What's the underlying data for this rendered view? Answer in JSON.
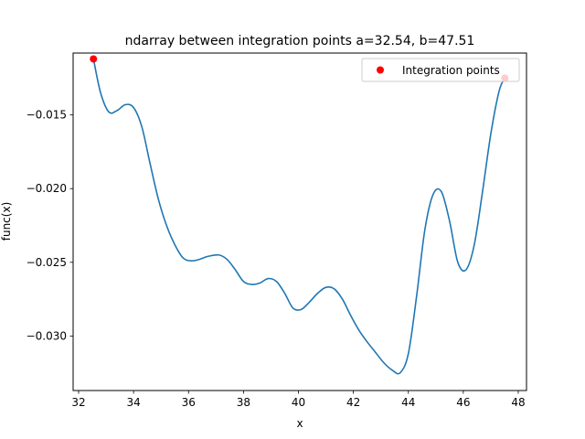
{
  "chart_data": {
    "type": "line",
    "title": "ndarray between integration points a=32.54, b=47.51",
    "xlabel": "x",
    "ylabel": "func(x)",
    "xlim": [
      31.8,
      48.3
    ],
    "ylim": [
      -0.0337,
      -0.0108
    ],
    "xticks": [
      32,
      34,
      36,
      38,
      40,
      42,
      44,
      46,
      48
    ],
    "yticks": [
      -0.015,
      -0.02,
      -0.025,
      -0.03
    ],
    "xtick_labels": [
      "32",
      "34",
      "36",
      "38",
      "40",
      "42",
      "44",
      "46",
      "48"
    ],
    "ytick_labels": [
      "−0.015",
      "−0.020",
      "−0.025",
      "−0.030"
    ],
    "grid": false,
    "legend_position": "top-right",
    "series": [
      {
        "kind": "line",
        "color": "#1f77b4",
        "x": [
          32.54,
          32.8,
          33.1,
          33.4,
          33.7,
          34.0,
          34.3,
          34.6,
          34.9,
          35.2,
          35.5,
          35.8,
          36.1,
          36.4,
          36.7,
          37.1,
          37.4,
          37.7,
          38.0,
          38.3,
          38.6,
          38.9,
          39.2,
          39.5,
          39.8,
          40.1,
          40.4,
          40.7,
          41.0,
          41.3,
          41.6,
          41.9,
          42.2,
          42.5,
          42.8,
          43.1,
          43.4,
          43.7,
          44.0,
          44.3,
          44.6,
          44.9,
          45.2,
          45.5,
          45.8,
          46.1,
          46.4,
          46.7,
          47.0,
          47.3,
          47.51
        ],
        "y": [
          -0.0112,
          -0.0135,
          -0.0148,
          -0.0147,
          -0.0143,
          -0.0145,
          -0.0158,
          -0.0183,
          -0.0207,
          -0.0225,
          -0.0238,
          -0.0247,
          -0.0249,
          -0.0248,
          -0.0246,
          -0.0245,
          -0.0248,
          -0.0255,
          -0.0263,
          -0.0265,
          -0.0264,
          -0.0261,
          -0.0263,
          -0.0271,
          -0.0281,
          -0.0282,
          -0.0277,
          -0.0271,
          -0.0267,
          -0.0268,
          -0.0275,
          -0.0286,
          -0.0296,
          -0.0304,
          -0.0311,
          -0.0318,
          -0.0323,
          -0.0325,
          -0.0312,
          -0.0273,
          -0.0228,
          -0.0204,
          -0.0202,
          -0.0222,
          -0.025,
          -0.0255,
          -0.0238,
          -0.0202,
          -0.0163,
          -0.0134,
          -0.0125
        ]
      },
      {
        "kind": "scatter",
        "name": "Integration points",
        "color": "#ff0000",
        "x": [
          32.54,
          47.51
        ],
        "y": [
          -0.0112,
          -0.0125
        ]
      }
    ]
  }
}
